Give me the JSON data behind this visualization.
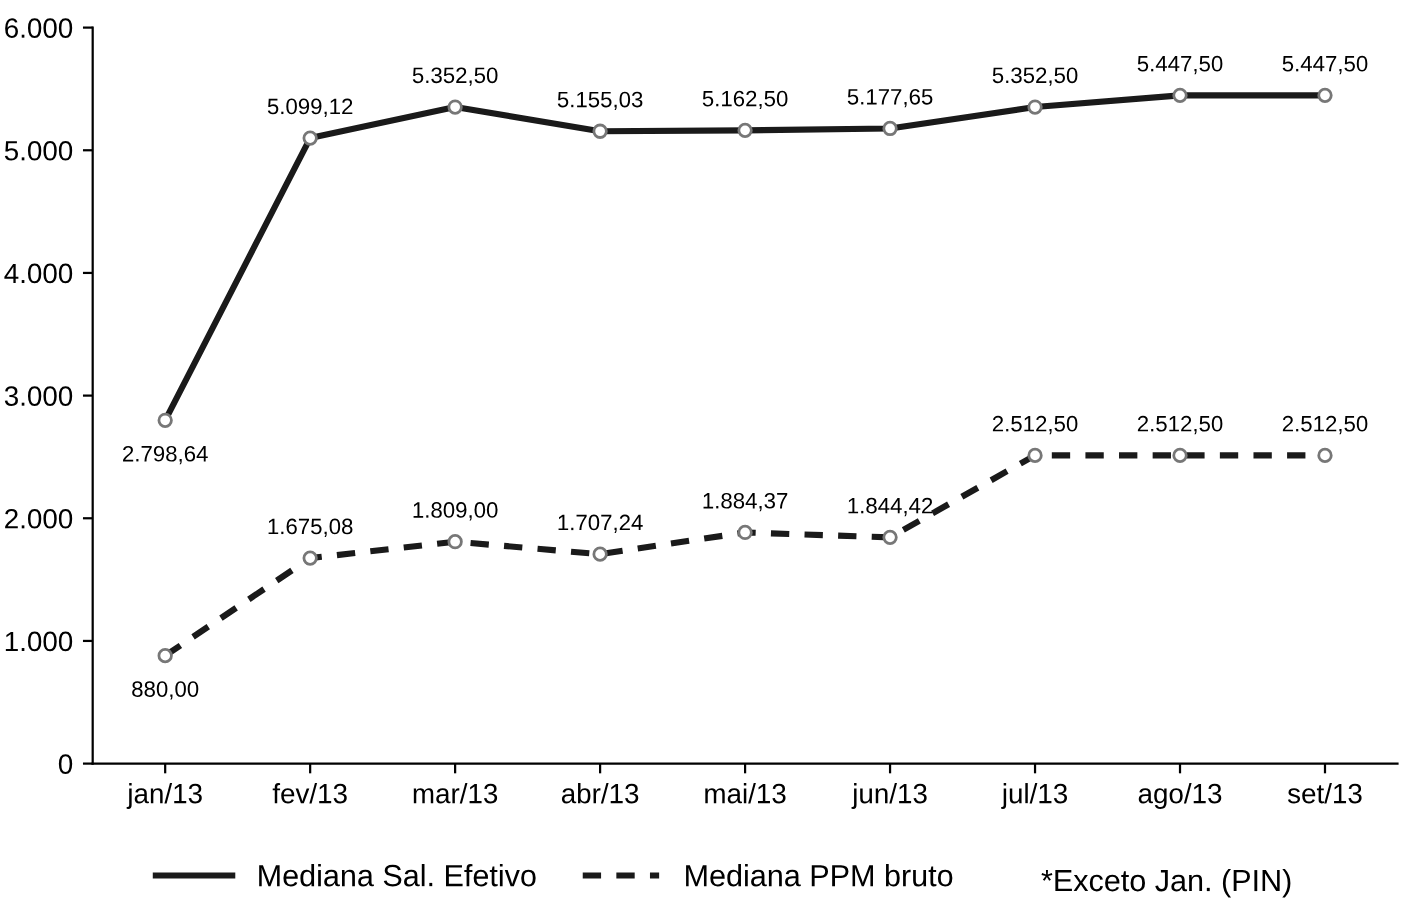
{
  "chart_data": {
    "type": "line",
    "categories": [
      "jan/13",
      "fev/13",
      "mar/13",
      "abr/13",
      "mai/13",
      "jun/13",
      "jul/13",
      "ago/13",
      "set/13"
    ],
    "series": [
      {
        "name": "Mediana Sal. Efetivo",
        "color": "#1a1a1a",
        "line_style": "solid",
        "values": [
          2798.64,
          5099.12,
          5352.5,
          5155.03,
          5162.5,
          5177.65,
          5352.5,
          5447.5,
          5447.5
        ],
        "value_labels": [
          "2.798,64",
          "5.099,12",
          "5.352,50",
          "5.155,03",
          "5.162,50",
          "5.177,65",
          "5.352,50",
          "5.447,50",
          "5.447,50"
        ]
      },
      {
        "name": "Mediana PPM bruto",
        "color": "#1a1a1a",
        "line_style": "dashed",
        "values": [
          880.0,
          1675.08,
          1809.0,
          1707.24,
          1884.37,
          1844.42,
          2512.5,
          2512.5,
          2512.5
        ],
        "value_labels": [
          "880,00",
          "1.675,08",
          "1.809,00",
          "1.707,24",
          "1.884,37",
          "1.844,42",
          "2.512,50",
          "2.512,50",
          "2.512,50"
        ]
      }
    ],
    "ylim": [
      0,
      6000
    ],
    "yticks": [
      {
        "value": 0,
        "label": "0"
      },
      {
        "value": 1000,
        "label": "1.000"
      },
      {
        "value": 2000,
        "label": "2.000"
      },
      {
        "value": 3000,
        "label": "3.000"
      },
      {
        "value": 4000,
        "label": "4.000"
      },
      {
        "value": 5000,
        "label": "5.000"
      },
      {
        "value": 6000,
        "label": "6.000"
      }
    ],
    "marker": "circle",
    "grid": false,
    "legend": "bottom",
    "annotations": [
      "*Exceto Jan. (PIN)"
    ]
  }
}
